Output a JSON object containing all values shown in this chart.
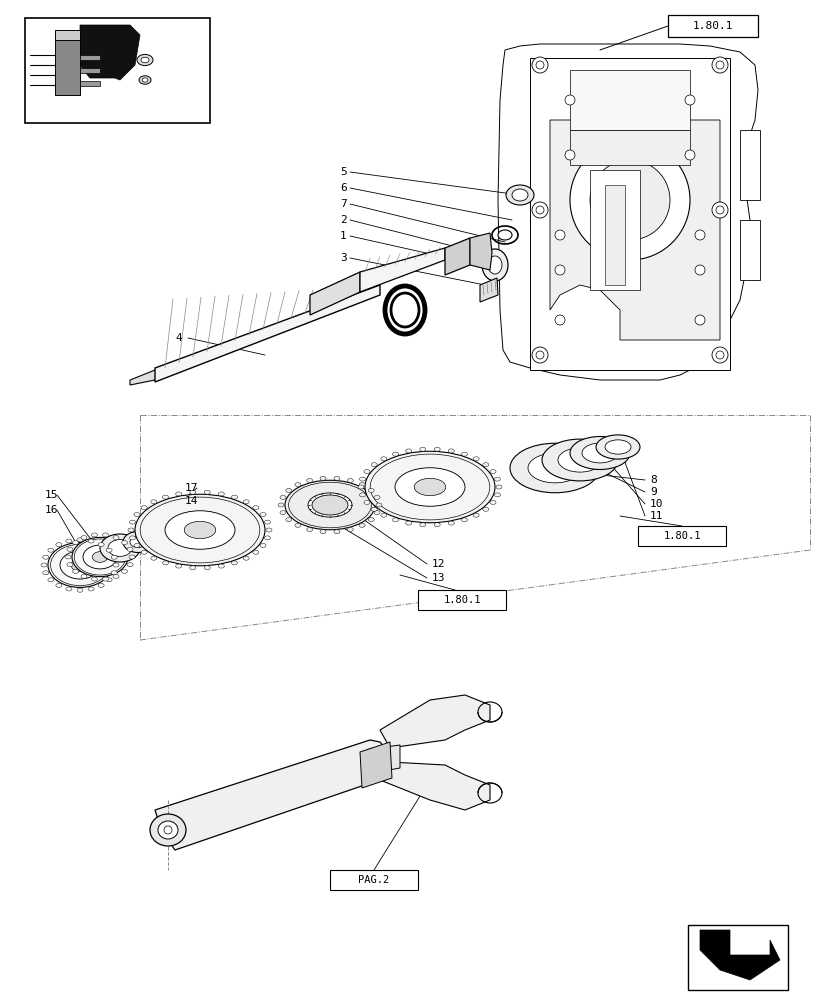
{
  "bg_color": "#ffffff",
  "line_color": "#000000",
  "page_width": 8.28,
  "page_height": 10.0,
  "dpi": 100
}
